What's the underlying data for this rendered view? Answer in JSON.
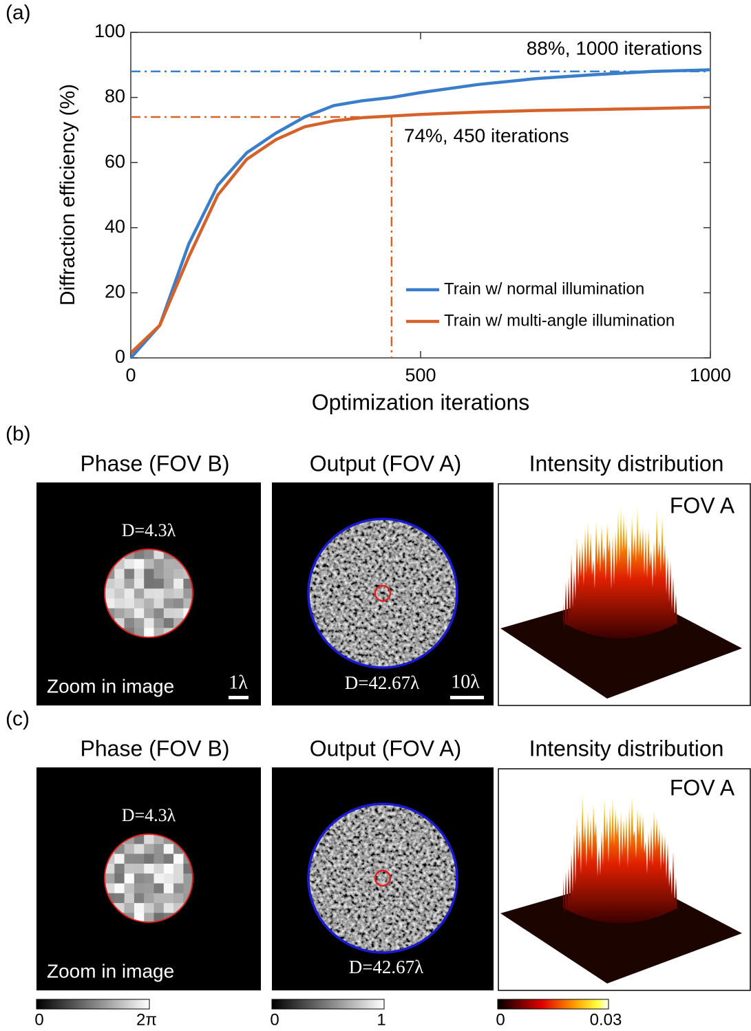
{
  "chart_data": {
    "type": "line",
    "panel_label": "(a)",
    "x_label": "Optimization iterations",
    "y_label": "Diffraction efficiency (%)",
    "x": [
      0,
      50,
      100,
      150,
      200,
      250,
      300,
      350,
      400,
      450,
      500,
      600,
      700,
      800,
      900,
      1000
    ],
    "series": [
      {
        "name": "Train w/ normal illumination",
        "color": "#3a7dc9",
        "values": [
          0,
          10,
          35,
          53,
          63,
          69,
          74,
          77.5,
          79,
          80,
          81.5,
          84,
          85.8,
          87,
          88,
          88.5
        ]
      },
      {
        "name": "Train w/ multi-angle illumination",
        "color": "#d4622a",
        "values": [
          1.5,
          10,
          31,
          50,
          61,
          67,
          71,
          72.8,
          73.8,
          74.3,
          74.8,
          75.5,
          76,
          76.3,
          76.6,
          77
        ]
      }
    ],
    "annotations": [
      {
        "text": "88%, 1000 iterations",
        "x": 1000,
        "y": 88,
        "series": 0
      },
      {
        "text": "74%, 450 iterations",
        "x": 450,
        "y": 74,
        "series": 1
      }
    ],
    "xlim": [
      0,
      1000
    ],
    "xticks": [
      0,
      500,
      1000
    ],
    "ylim": [
      0,
      100
    ],
    "yticks": [
      0,
      20,
      40,
      60,
      80,
      100
    ],
    "legend": "lower right"
  },
  "panels": [
    {
      "label": "(b)",
      "columns": [
        {
          "title": "Phase (FOV B)",
          "diameter": "D=4.3λ",
          "caption": "Zoom in image",
          "scale": "1λ"
        },
        {
          "title": "Output (FOV A)",
          "diameter": "D=42.67λ",
          "scale": "10λ"
        },
        {
          "title": "Intensity distribution",
          "tag": "FOV A"
        }
      ]
    },
    {
      "label": "(c)",
      "columns": [
        {
          "title": "Phase (FOV B)",
          "diameter": "D=4.3λ",
          "caption": "Zoom in image"
        },
        {
          "title": "Output (FOV A)",
          "diameter": "D=42.67λ"
        },
        {
          "title": "Intensity distribution",
          "tag": "FOV A"
        }
      ]
    }
  ],
  "colorbars": [
    {
      "min": "0",
      "max": "2π"
    },
    {
      "min": "0",
      "max": "1"
    },
    {
      "min": "0",
      "max": "0.03"
    }
  ]
}
